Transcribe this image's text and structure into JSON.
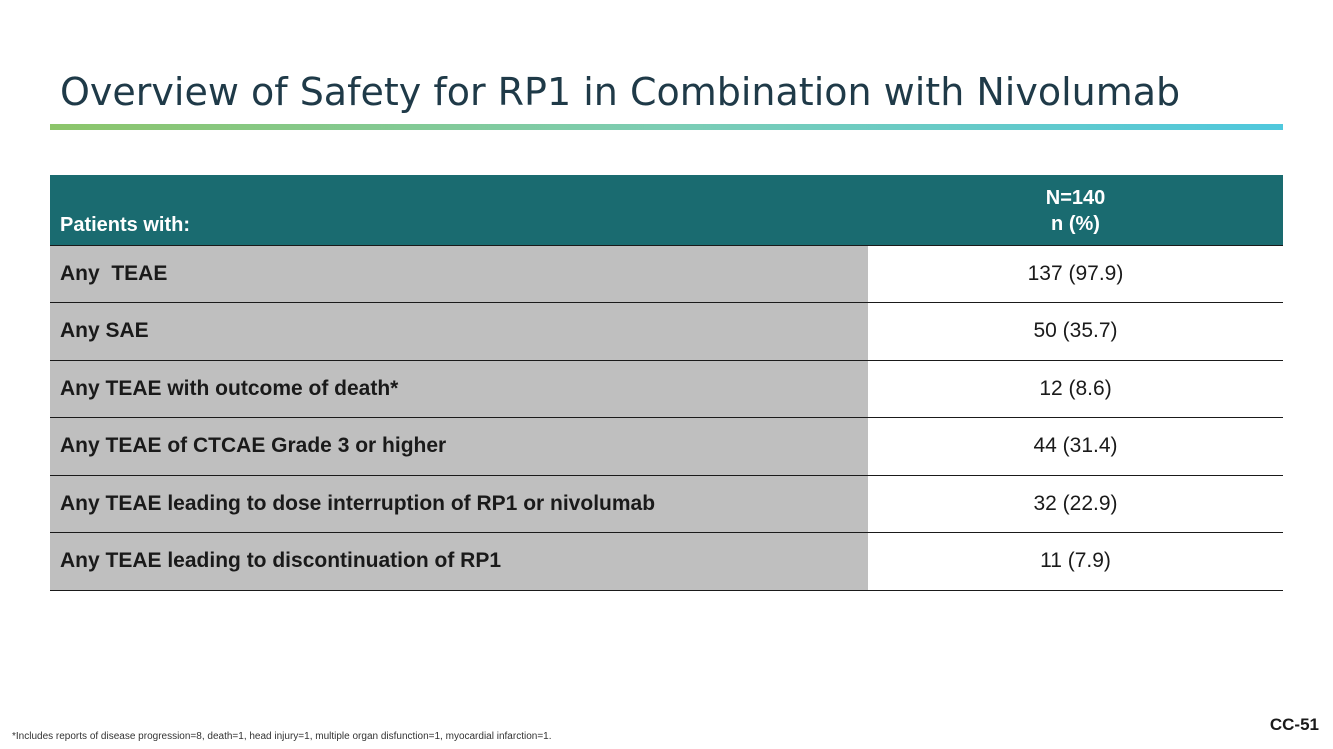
{
  "title": "Overview of Safety for RP1 in Combination with Nivolumab",
  "table": {
    "header_label": "Patients with:",
    "header_value_line1": "N=140",
    "header_value_line2": "n (%)",
    "rows": [
      {
        "label": "Any  TEAE",
        "value": "137 (97.9)"
      },
      {
        "label": "Any SAE",
        "value": "50 (35.7)"
      },
      {
        "label": "Any TEAE with outcome of death*",
        "value": "12 (8.6)"
      },
      {
        "label": "Any TEAE of CTCAE Grade 3 or higher",
        "value": "44 (31.4)"
      },
      {
        "label": "Any TEAE leading to dose interruption of RP1 or nivolumab",
        "value": "32 (22.9)"
      },
      {
        "label": "Any TEAE leading to discontinuation of RP1",
        "value": "11 (7.9)"
      }
    ]
  },
  "footnote": "*Includes reports of disease progression=8, death=1, head injury=1, multiple organ disfunction=1, myocardial infarction=1.",
  "slide_number": "CC-51",
  "colors": {
    "header_bg": "#1a6b70",
    "label_cell_bg": "#bfbfbf",
    "title_color": "#1f3a48",
    "rule_gradient": [
      "#8cc56a",
      "#4fc8dd"
    ]
  }
}
